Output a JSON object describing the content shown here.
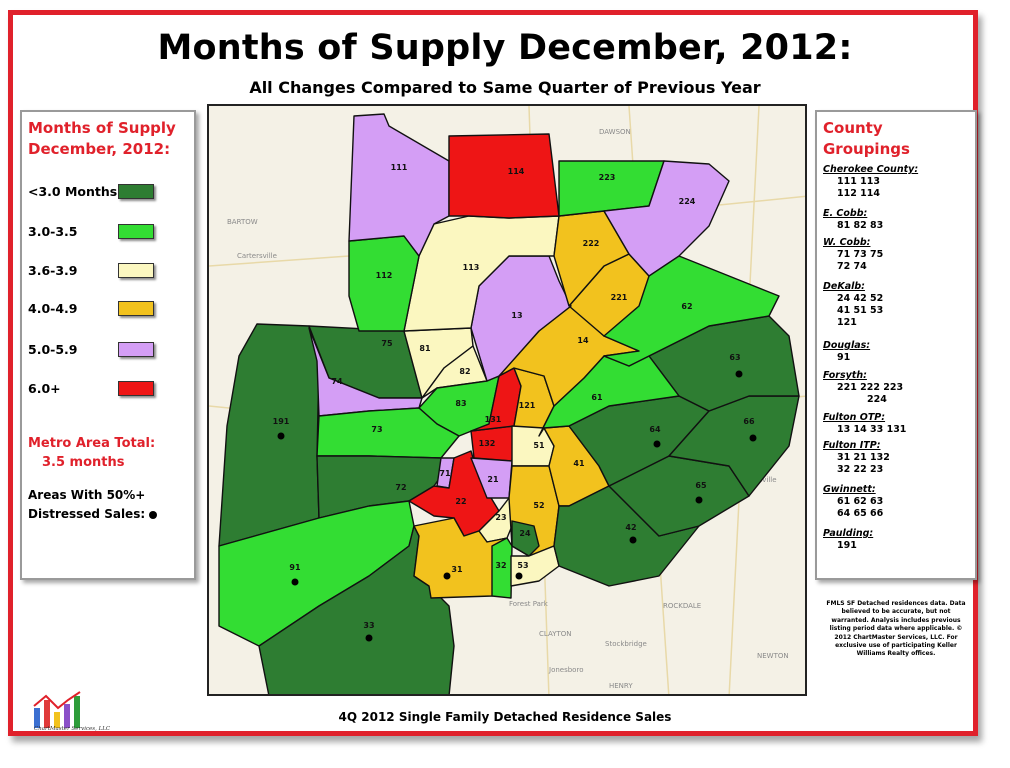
{
  "title": "Months of Supply December, 2012:",
  "subtitle": "All Changes Compared to Same Quarter of Previous Year",
  "footer": "4Q 2012 Single Family Detached Residence Sales",
  "legend": {
    "title": "Months of Supply December, 2012:",
    "items": [
      {
        "label": "<3.0 Months",
        "color": "#2e7d32"
      },
      {
        "label": "3.0-3.5",
        "color": "#33dd33"
      },
      {
        "label": "3.6-3.9",
        "color": "#fbf7c0"
      },
      {
        "label": "4.0-4.9",
        "color": "#f2c21e"
      },
      {
        "label": "5.0-5.9",
        "color": "#d49ef5"
      },
      {
        "label": "6.0+",
        "color": "#ee1515"
      }
    ],
    "metro_line1": "Metro Area Total:",
    "metro_line2": "3.5 months",
    "distressed_line1": "Areas With 50%+",
    "distressed_line2": "Distressed Sales:"
  },
  "groupings": {
    "title_line1": "County",
    "title_line2": "Groupings",
    "groups": [
      {
        "name": "Cherokee County:",
        "codes": [
          "111   113",
          "112   114"
        ]
      },
      {
        "name": "E. Cobb:",
        "codes": [
          "81   82   83"
        ]
      },
      {
        "name": "W. Cobb:",
        "codes": [
          "71   73   75",
          "72   74"
        ]
      },
      {
        "name": "DeKalb:",
        "codes": [
          "24   42   52",
          "41   51   53",
          "121"
        ]
      },
      {
        "name": "Douglas:",
        "codes": [
          "91"
        ]
      },
      {
        "name": "Forsyth:",
        "codes": [
          "221  222    223",
          "224"
        ]
      },
      {
        "name": "Fulton OTP:",
        "codes": [
          "13   14   33  131"
        ]
      },
      {
        "name": "Fulton ITP:",
        "codes": [
          "31   21   132",
          "32   22    23"
        ]
      },
      {
        "name": "Gwinnett:",
        "codes": [
          "61   62   63",
          "64   65   66"
        ]
      },
      {
        "name": "Paulding:",
        "codes": [
          "191"
        ]
      }
    ]
  },
  "note": "FMLS SF Detached residences data. Data believed to be accurate, but not warranted. Analysis includes previous listing period data where applicable. © 2012 ChartMaster Services, LLC. For exclusive use of participating Keller Williams Realty offices.",
  "logo_text": "ChartMaster Services, LLC",
  "map": {
    "background_labels": [
      "DAWSON",
      "BARTOW",
      "Cartersville",
      "Forest Park",
      "CLAYTON",
      "HENRY",
      "NEWTON",
      "ROCKDALE",
      "Loganville",
      "Jonesboro",
      "Stockbridge"
    ],
    "zones": [
      {
        "code": "111",
        "category": "5.0-5.9",
        "distressed": false
      },
      {
        "code": "114",
        "category": "6.0+",
        "distressed": false
      },
      {
        "code": "223",
        "category": "3.0-3.5",
        "distressed": false
      },
      {
        "code": "224",
        "category": "5.0-5.9",
        "distressed": false
      },
      {
        "code": "222",
        "category": "4.0-4.9",
        "distressed": false
      },
      {
        "code": "112",
        "category": "3.0-3.5",
        "distressed": false
      },
      {
        "code": "113",
        "category": "3.6-3.9",
        "distressed": false
      },
      {
        "code": "221",
        "category": "4.0-4.9",
        "distressed": false
      },
      {
        "code": "13",
        "category": "5.0-5.9",
        "distressed": false
      },
      {
        "code": "62",
        "category": "3.0-3.5",
        "distressed": false
      },
      {
        "code": "14",
        "category": "4.0-4.9",
        "distressed": false
      },
      {
        "code": "75",
        "category": "<3.0 Months",
        "distressed": false
      },
      {
        "code": "81",
        "category": "3.6-3.9",
        "distressed": false
      },
      {
        "code": "82",
        "category": "3.6-3.9",
        "distressed": false
      },
      {
        "code": "74",
        "category": "5.0-5.9",
        "distressed": false
      },
      {
        "code": "63",
        "category": "<3.0 Months",
        "distressed": true
      },
      {
        "code": "61",
        "category": "3.0-3.5",
        "distressed": false
      },
      {
        "code": "191",
        "category": "<3.0 Months",
        "distressed": true
      },
      {
        "code": "83",
        "category": "3.0-3.5",
        "distressed": false
      },
      {
        "code": "131",
        "category": "6.0+",
        "distressed": false
      },
      {
        "code": "121",
        "category": "4.0-4.9",
        "distressed": false
      },
      {
        "code": "73",
        "category": "3.0-3.5",
        "distressed": false
      },
      {
        "code": "132",
        "category": "6.0+",
        "distressed": false
      },
      {
        "code": "64",
        "category": "<3.0 Months",
        "distressed": true
      },
      {
        "code": "66",
        "category": "<3.0 Months",
        "distressed": true
      },
      {
        "code": "51",
        "category": "3.6-3.9",
        "distressed": false
      },
      {
        "code": "41",
        "category": "4.0-4.9",
        "distressed": false
      },
      {
        "code": "71",
        "category": "5.0-5.9",
        "distressed": false
      },
      {
        "code": "21",
        "category": "5.0-5.9",
        "distressed": false
      },
      {
        "code": "72",
        "category": "<3.0 Months",
        "distressed": false
      },
      {
        "code": "22",
        "category": "6.0+",
        "distressed": false
      },
      {
        "code": "65",
        "category": "<3.0 Months",
        "distressed": true
      },
      {
        "code": "52",
        "category": "4.0-4.9",
        "distressed": false
      },
      {
        "code": "23",
        "category": "3.6-3.9",
        "distressed": false
      },
      {
        "code": "24",
        "category": "<3.0 Months",
        "distressed": false
      },
      {
        "code": "42",
        "category": "<3.0 Months",
        "distressed": true
      },
      {
        "code": "91",
        "category": "3.0-3.5",
        "distressed": true
      },
      {
        "code": "31",
        "category": "4.0-4.9",
        "distressed": true
      },
      {
        "code": "32",
        "category": "3.0-3.5",
        "distressed": false
      },
      {
        "code": "53",
        "category": "3.6-3.9",
        "distressed": true
      },
      {
        "code": "33",
        "category": "<3.0 Months",
        "distressed": true
      }
    ]
  }
}
